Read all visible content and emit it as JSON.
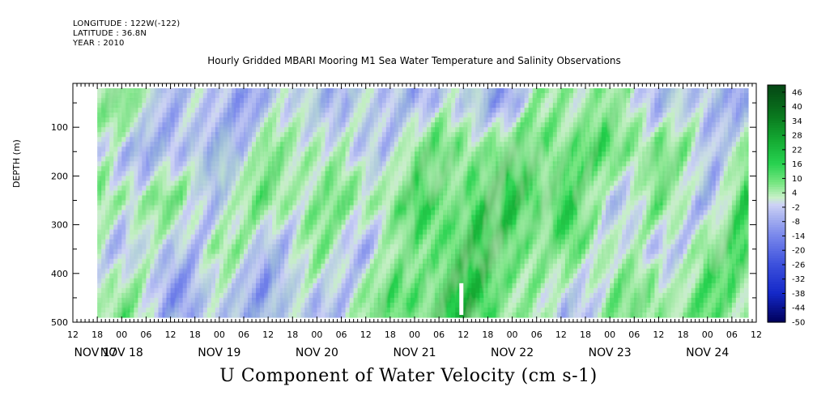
{
  "header": {
    "longitude": "LONGITUDE : 122W(-122)",
    "latitude": "LATITUDE : 36.8N",
    "year": "YEAR : 2010"
  },
  "chart_data": {
    "type": "heatmap",
    "title": "Hourly Gridded MBARI Mooring M1 Sea Water Temperature and Salinity Observations",
    "xlabel": "U Component of Water Velocity (cm s-1)",
    "ylabel": "DEPTH (m)",
    "y_ticks": [
      "100",
      "200",
      "300",
      "400",
      "500"
    ],
    "y_range": [
      10,
      500
    ],
    "y_inverted": true,
    "hour_ticks": [
      "12",
      "18",
      "00",
      "06",
      "12",
      "18",
      "00",
      "06",
      "12",
      "18",
      "00",
      "06",
      "12",
      "18",
      "00",
      "06",
      "12",
      "18",
      "00",
      "06",
      "12",
      "18",
      "00",
      "06",
      "12",
      "18",
      "00",
      "06",
      "12"
    ],
    "date_labels": [
      "NOV 17",
      "NOV 18",
      "NOV 19",
      "NOV 20",
      "NOV 21",
      "NOV 22",
      "NOV 23",
      "NOV 24"
    ],
    "x_range_hours_from_nov17_00": [
      12,
      180
    ],
    "data_extent_hours": [
      18,
      178
    ],
    "data_depth_range_m": [
      20,
      485
    ],
    "colorbar": {
      "labels": [
        "46",
        "40",
        "34",
        "28",
        "22",
        "16",
        "10",
        "4",
        "-2",
        "-8",
        "-14",
        "-20",
        "-26",
        "-32",
        "-38",
        "-44",
        "-50"
      ],
      "range": [
        -50,
        49
      ]
    },
    "column_profiles": [
      {
        "hour": 18,
        "u_by_depth": [
          {
            "d": 50,
            "u": 8
          },
          {
            "d": 150,
            "u": -4
          },
          {
            "d": 250,
            "u": 6
          },
          {
            "d": 350,
            "u": 4
          },
          {
            "d": 450,
            "u": 6
          }
        ]
      },
      {
        "hour": 24,
        "u_by_depth": [
          {
            "d": 50,
            "u": 10
          },
          {
            "d": 150,
            "u": -6
          },
          {
            "d": 250,
            "u": 8
          },
          {
            "d": 350,
            "u": -4
          },
          {
            "d": 450,
            "u": 8
          }
        ]
      },
      {
        "hour": 36,
        "u_by_depth": [
          {
            "d": 50,
            "u": -4
          },
          {
            "d": 150,
            "u": -8
          },
          {
            "d": 250,
            "u": 8
          },
          {
            "d": 350,
            "u": -6
          },
          {
            "d": 450,
            "u": -8
          }
        ]
      },
      {
        "hour": 48,
        "u_by_depth": [
          {
            "d": 50,
            "u": -6
          },
          {
            "d": 150,
            "u": -10
          },
          {
            "d": 250,
            "u": -4
          },
          {
            "d": 350,
            "u": 6
          },
          {
            "d": 450,
            "u": -6
          }
        ]
      },
      {
        "hour": 60,
        "u_by_depth": [
          {
            "d": 50,
            "u": -6
          },
          {
            "d": 150,
            "u": 6
          },
          {
            "d": 250,
            "u": 10
          },
          {
            "d": 350,
            "u": -6
          },
          {
            "d": 450,
            "u": -8
          }
        ]
      },
      {
        "hour": 72,
        "u_by_depth": [
          {
            "d": 50,
            "u": -4
          },
          {
            "d": 150,
            "u": 8
          },
          {
            "d": 250,
            "u": 6
          },
          {
            "d": 350,
            "u": 4
          },
          {
            "d": 450,
            "u": -6
          }
        ]
      },
      {
        "hour": 84,
        "u_by_depth": [
          {
            "d": 50,
            "u": -6
          },
          {
            "d": 150,
            "u": -8
          },
          {
            "d": 250,
            "u": 8
          },
          {
            "d": 350,
            "u": -4
          },
          {
            "d": 450,
            "u": 6
          }
        ]
      },
      {
        "hour": 96,
        "u_by_depth": [
          {
            "d": 50,
            "u": -4
          },
          {
            "d": 150,
            "u": 10
          },
          {
            "d": 250,
            "u": 12
          },
          {
            "d": 350,
            "u": 8
          },
          {
            "d": 450,
            "u": 14
          }
        ]
      },
      {
        "hour": 108,
        "u_by_depth": [
          {
            "d": 50,
            "u": -6
          },
          {
            "d": 150,
            "u": 12
          },
          {
            "d": 250,
            "u": 14
          },
          {
            "d": 350,
            "u": 18
          },
          {
            "d": 450,
            "u": 20
          }
        ]
      },
      {
        "hour": 120,
        "u_by_depth": [
          {
            "d": 50,
            "u": -8
          },
          {
            "d": 150,
            "u": 12
          },
          {
            "d": 250,
            "u": 18
          },
          {
            "d": 350,
            "u": 16
          },
          {
            "d": 450,
            "u": 10
          }
        ]
      },
      {
        "hour": 132,
        "u_by_depth": [
          {
            "d": 50,
            "u": 8
          },
          {
            "d": 150,
            "u": 14
          },
          {
            "d": 250,
            "u": 18
          },
          {
            "d": 350,
            "u": 6
          },
          {
            "d": 450,
            "u": -6
          }
        ]
      },
      {
        "hour": 144,
        "u_by_depth": [
          {
            "d": 50,
            "u": 6
          },
          {
            "d": 150,
            "u": 10
          },
          {
            "d": 250,
            "u": -4
          },
          {
            "d": 350,
            "u": 8
          },
          {
            "d": 450,
            "u": 6
          }
        ]
      },
      {
        "hour": 156,
        "u_by_depth": [
          {
            "d": 50,
            "u": -4
          },
          {
            "d": 150,
            "u": 14
          },
          {
            "d": 250,
            "u": 8
          },
          {
            "d": 350,
            "u": -8
          },
          {
            "d": 450,
            "u": 10
          }
        ]
      },
      {
        "hour": 168,
        "u_by_depth": [
          {
            "d": 50,
            "u": -8
          },
          {
            "d": 150,
            "u": -4
          },
          {
            "d": 250,
            "u": -6
          },
          {
            "d": 350,
            "u": 12
          },
          {
            "d": 450,
            "u": 8
          }
        ]
      },
      {
        "hour": 178,
        "u_by_depth": [
          {
            "d": 50,
            "u": -6
          },
          {
            "d": 150,
            "u": 8
          },
          {
            "d": 250,
            "u": 14
          },
          {
            "d": 350,
            "u": 12
          },
          {
            "d": 450,
            "u": 8
          }
        ]
      }
    ],
    "missing_data_hours": [
      [
        107,
        108
      ]
    ],
    "missing_data_depth_m": [
      420,
      485
    ]
  }
}
